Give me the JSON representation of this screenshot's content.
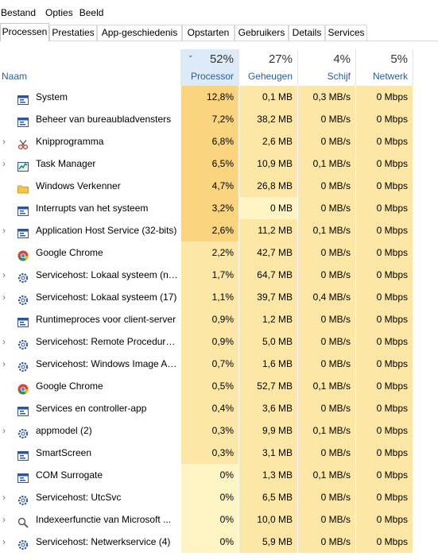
{
  "menu": [
    "Bestand",
    "Opties",
    "Beeld"
  ],
  "tabs": [
    "Processen",
    "Prestaties",
    "App-geschiedenis",
    "Opstarten",
    "Gebruikers",
    "Details",
    "Services"
  ],
  "columns": {
    "name": "Naam",
    "cpu": {
      "pct": "52%",
      "label": "Processor"
    },
    "mem": {
      "pct": "27%",
      "label": "Geheugen"
    },
    "disk": {
      "pct": "4%",
      "label": "Schijf"
    },
    "net": {
      "pct": "5%",
      "label": "Netwerk"
    }
  },
  "colors": {
    "heat_high": "#fad47e",
    "heat_mid": "#fce7a6",
    "heat_low": "#fff4c4",
    "selected_header": "#dcebf7",
    "header_text": "#2a5d9c"
  },
  "processes": [
    {
      "name": "System",
      "icon": "window-icon",
      "expandable": false,
      "cpu": "12,8%",
      "mem": "0,1 MB",
      "disk": "0,3 MB/s",
      "net": "0 Mbps"
    },
    {
      "name": "Beheer van bureaubladvensters",
      "icon": "window-icon",
      "expandable": false,
      "cpu": "7,2%",
      "mem": "38,2 MB",
      "disk": "0 MB/s",
      "net": "0 Mbps"
    },
    {
      "name": "Knipprogramma",
      "icon": "scissors-icon",
      "expandable": true,
      "cpu": "6,8%",
      "mem": "2,6 MB",
      "disk": "0 MB/s",
      "net": "0 Mbps"
    },
    {
      "name": "Task Manager",
      "icon": "task-manager-icon",
      "expandable": true,
      "cpu": "6,5%",
      "mem": "10,9 MB",
      "disk": "0,1 MB/s",
      "net": "0 Mbps"
    },
    {
      "name": "Windows Verkenner",
      "icon": "folder-icon",
      "expandable": false,
      "cpu": "4,7%",
      "mem": "26,8 MB",
      "disk": "0 MB/s",
      "net": "0 Mbps"
    },
    {
      "name": "Interrupts van het systeem",
      "icon": "window-icon",
      "expandable": false,
      "cpu": "3,2%",
      "mem": "0 MB",
      "disk": "0 MB/s",
      "net": "0 Mbps"
    },
    {
      "name": "Application Host Service (32-bits)",
      "icon": "window-icon",
      "expandable": true,
      "cpu": "2,6%",
      "mem": "11,2 MB",
      "disk": "0,1 MB/s",
      "net": "0 Mbps"
    },
    {
      "name": "Google Chrome",
      "icon": "chrome-icon",
      "expandable": false,
      "cpu": "2,2%",
      "mem": "42,7 MB",
      "disk": "0 MB/s",
      "net": "0 Mbps"
    },
    {
      "name": "Servicehost: Lokaal systeem (ne...",
      "icon": "gear-icon",
      "expandable": true,
      "cpu": "1,7%",
      "mem": "64,7 MB",
      "disk": "0 MB/s",
      "net": "0 Mbps"
    },
    {
      "name": "Servicehost: Lokaal systeem (17)",
      "icon": "gear-icon",
      "expandable": true,
      "cpu": "1,1%",
      "mem": "39,7 MB",
      "disk": "0,4 MB/s",
      "net": "0 Mbps"
    },
    {
      "name": "Runtimeproces voor client-server",
      "icon": "window-icon",
      "expandable": false,
      "cpu": "0,9%",
      "mem": "1,2 MB",
      "disk": "0 MB/s",
      "net": "0 Mbps"
    },
    {
      "name": "Servicehost: Remote Procedure ...",
      "icon": "gear-icon",
      "expandable": true,
      "cpu": "0,9%",
      "mem": "5,0 MB",
      "disk": "0 MB/s",
      "net": "0 Mbps"
    },
    {
      "name": "Servicehost: Windows Image Ac...",
      "icon": "gear-icon",
      "expandable": true,
      "cpu": "0,7%",
      "mem": "1,6 MB",
      "disk": "0 MB/s",
      "net": "0 Mbps"
    },
    {
      "name": "Google Chrome",
      "icon": "chrome-icon",
      "expandable": false,
      "cpu": "0,5%",
      "mem": "52,7 MB",
      "disk": "0,1 MB/s",
      "net": "0 Mbps"
    },
    {
      "name": "Services en controller-app",
      "icon": "window-icon",
      "expandable": false,
      "cpu": "0,4%",
      "mem": "3,6 MB",
      "disk": "0 MB/s",
      "net": "0 Mbps"
    },
    {
      "name": "appmodel (2)",
      "icon": "gear-icon",
      "expandable": true,
      "cpu": "0,3%",
      "mem": "9,9 MB",
      "disk": "0,1 MB/s",
      "net": "0 Mbps"
    },
    {
      "name": "SmartScreen",
      "icon": "window-icon",
      "expandable": false,
      "cpu": "0,3%",
      "mem": "3,1 MB",
      "disk": "0 MB/s",
      "net": "0 Mbps"
    },
    {
      "name": "COM Surrogate",
      "icon": "window-icon",
      "expandable": false,
      "cpu": "0%",
      "mem": "1,3 MB",
      "disk": "0,1 MB/s",
      "net": "0 Mbps"
    },
    {
      "name": "Servicehost: UtcSvc",
      "icon": "gear-icon",
      "expandable": true,
      "cpu": "0%",
      "mem": "6,5 MB",
      "disk": "0 MB/s",
      "net": "0 Mbps"
    },
    {
      "name": "Indexeerfunctie van Microsoft ...",
      "icon": "search-user-icon",
      "expandable": true,
      "cpu": "0%",
      "mem": "10,0 MB",
      "disk": "0 MB/s",
      "net": "0 Mbps"
    },
    {
      "name": "Servicehost: Netwerkservice (4)",
      "icon": "gear-icon",
      "expandable": true,
      "cpu": "0%",
      "mem": "5,9 MB",
      "disk": "0 MB/s",
      "net": "0 Mbps"
    }
  ]
}
